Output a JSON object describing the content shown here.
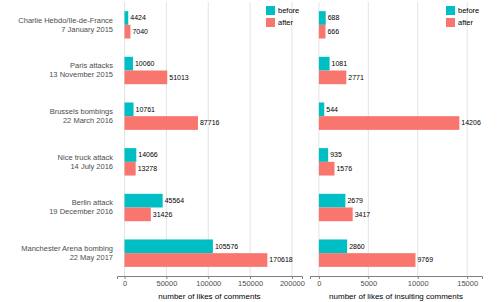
{
  "chart_data": [
    {
      "type": "bar",
      "orientation": "horizontal",
      "categories": [
        "Charlie Hebdo/Ile-de-France\n7 January 2015",
        "Paris attacks\n13 November 2015",
        "Brussels bombings\n22 March 2016",
        "Nice truck attack\n14 July 2016",
        "Berlin attack\n19 December 2016",
        "Manchester Arena bombing\n22 May 2017"
      ],
      "series": [
        {
          "name": "before",
          "color": "#00BFC4",
          "values": [
            4424,
            10060,
            10761,
            14066,
            45564,
            105576
          ]
        },
        {
          "name": "after",
          "color": "#F8766D",
          "values": [
            7040,
            51013,
            87716,
            13278,
            31426,
            170618
          ]
        }
      ],
      "xlabel": "number of likes of comments",
      "xlim": [
        -9000,
        212000
      ],
      "xticks": [
        0,
        50000,
        100000,
        150000,
        200000
      ],
      "grid": true,
      "legend": "top-right",
      "data_labels": true
    },
    {
      "type": "bar",
      "orientation": "horizontal",
      "categories": [
        "Charlie Hebdo/Ile-de-France\n7 January 2015",
        "Paris attacks\n13 November 2015",
        "Brussels bombings\n22 March 2016",
        "Nice truck attack\n14 July 2016",
        "Berlin attack\n19 December 2016",
        "Manchester Arena bombing\n22 May 2017"
      ],
      "series": [
        {
          "name": "before",
          "color": "#00BFC4",
          "values": [
            688,
            1081,
            544,
            935,
            2679,
            2860
          ]
        },
        {
          "name": "after",
          "color": "#F8766D",
          "values": [
            666,
            2771,
            14206,
            1576,
            3417,
            9769
          ]
        }
      ],
      "xlabel": "number of likes of insulting comments",
      "xlim": [
        -900,
        16500
      ],
      "xticks": [
        0,
        5000,
        10000,
        15000
      ],
      "grid": true,
      "legend": "top-right",
      "data_labels": true,
      "tick_labels": "x"
    }
  ]
}
